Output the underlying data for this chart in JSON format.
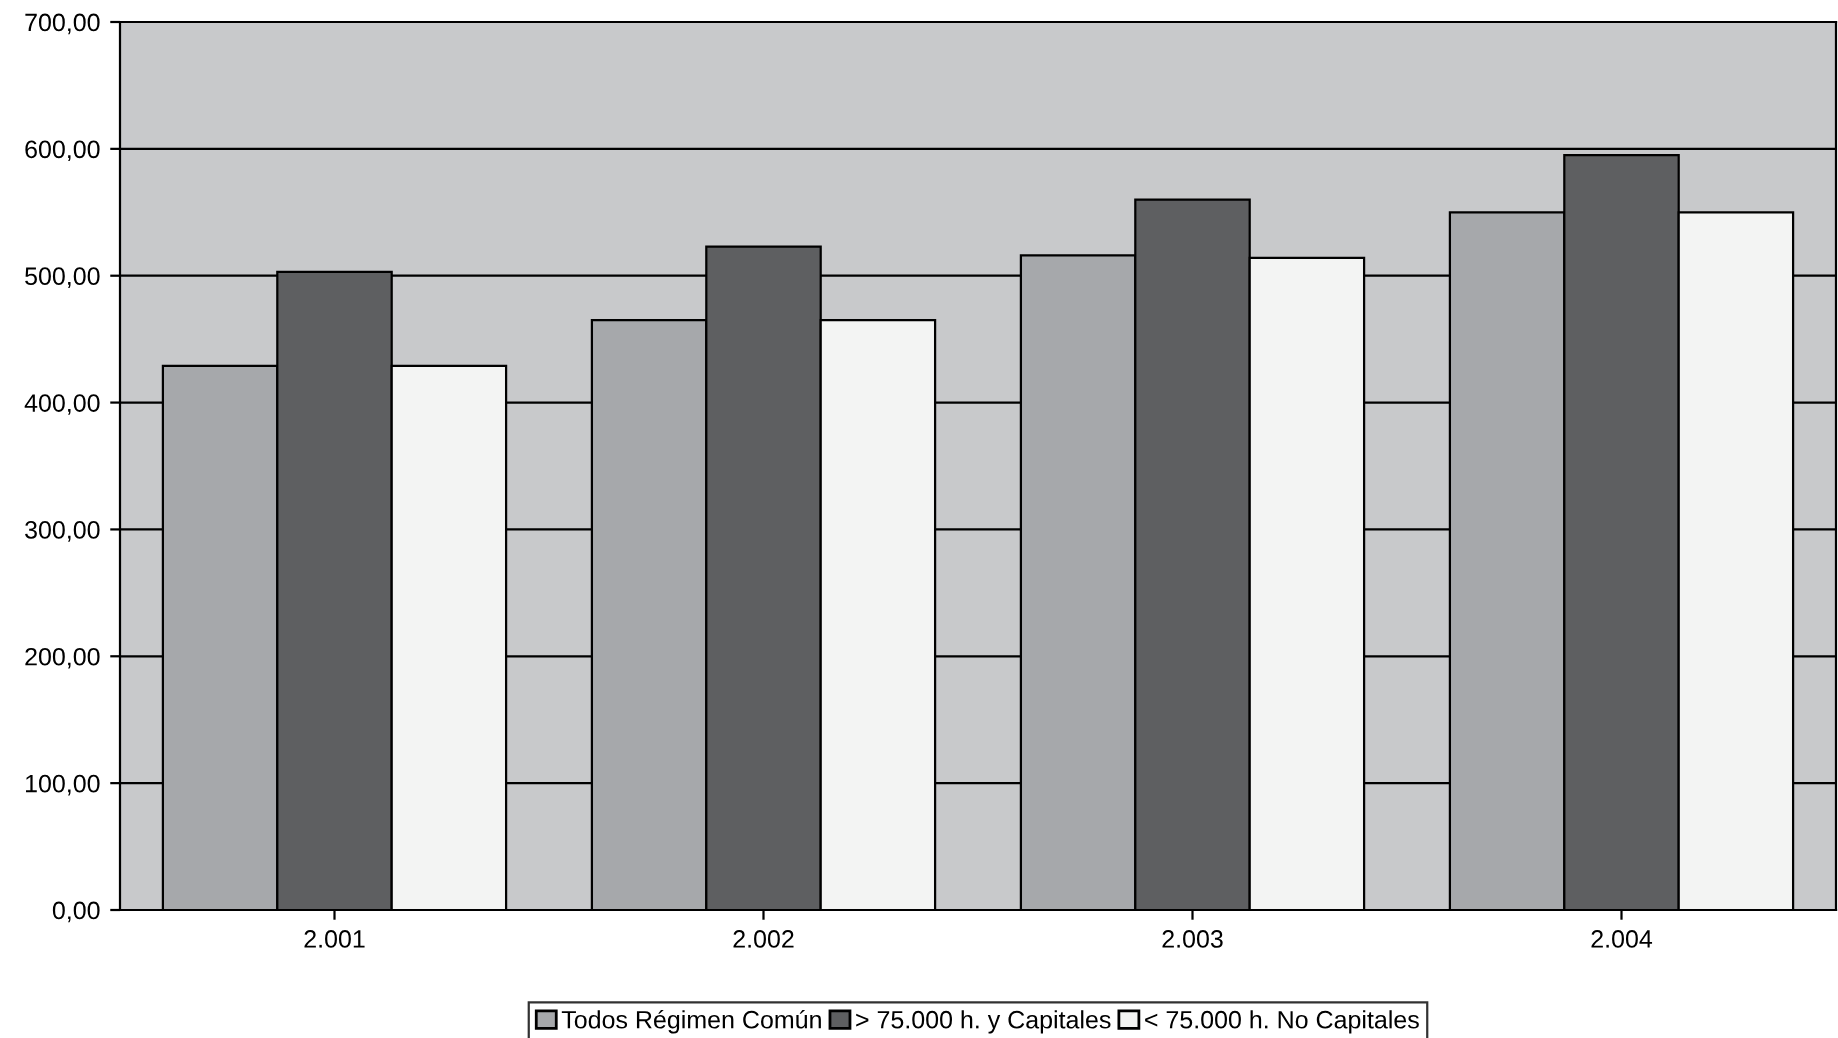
{
  "chart_data": {
    "type": "bar",
    "categories": [
      "2.001",
      "2.002",
      "2.003",
      "2.004"
    ],
    "series": [
      {
        "name": "Todos Régimen Común",
        "color": "#a6a8ab",
        "values": [
          429,
          465,
          516,
          550
        ]
      },
      {
        "name": "> 75.000 h. y Capitales",
        "color": "#5e5f61",
        "values": [
          503,
          523,
          560,
          595
        ]
      },
      {
        "name": "< 75.000 h. No Capitales",
        "color": "#f3f4f3",
        "values": [
          429,
          465,
          514,
          550
        ]
      }
    ],
    "ylim": [
      0,
      700
    ],
    "yticks": [
      {
        "value": 0,
        "label": "0,00"
      },
      {
        "value": 100,
        "label": "100,00"
      },
      {
        "value": 200,
        "label": "200,00"
      },
      {
        "value": 300,
        "label": "300,00"
      },
      {
        "value": 400,
        "label": "400,00"
      },
      {
        "value": 500,
        "label": "500,00"
      },
      {
        "value": 600,
        "label": "600,00"
      },
      {
        "value": 700,
        "label": "700,00"
      }
    ],
    "grid": "y",
    "legend": "bottom"
  }
}
